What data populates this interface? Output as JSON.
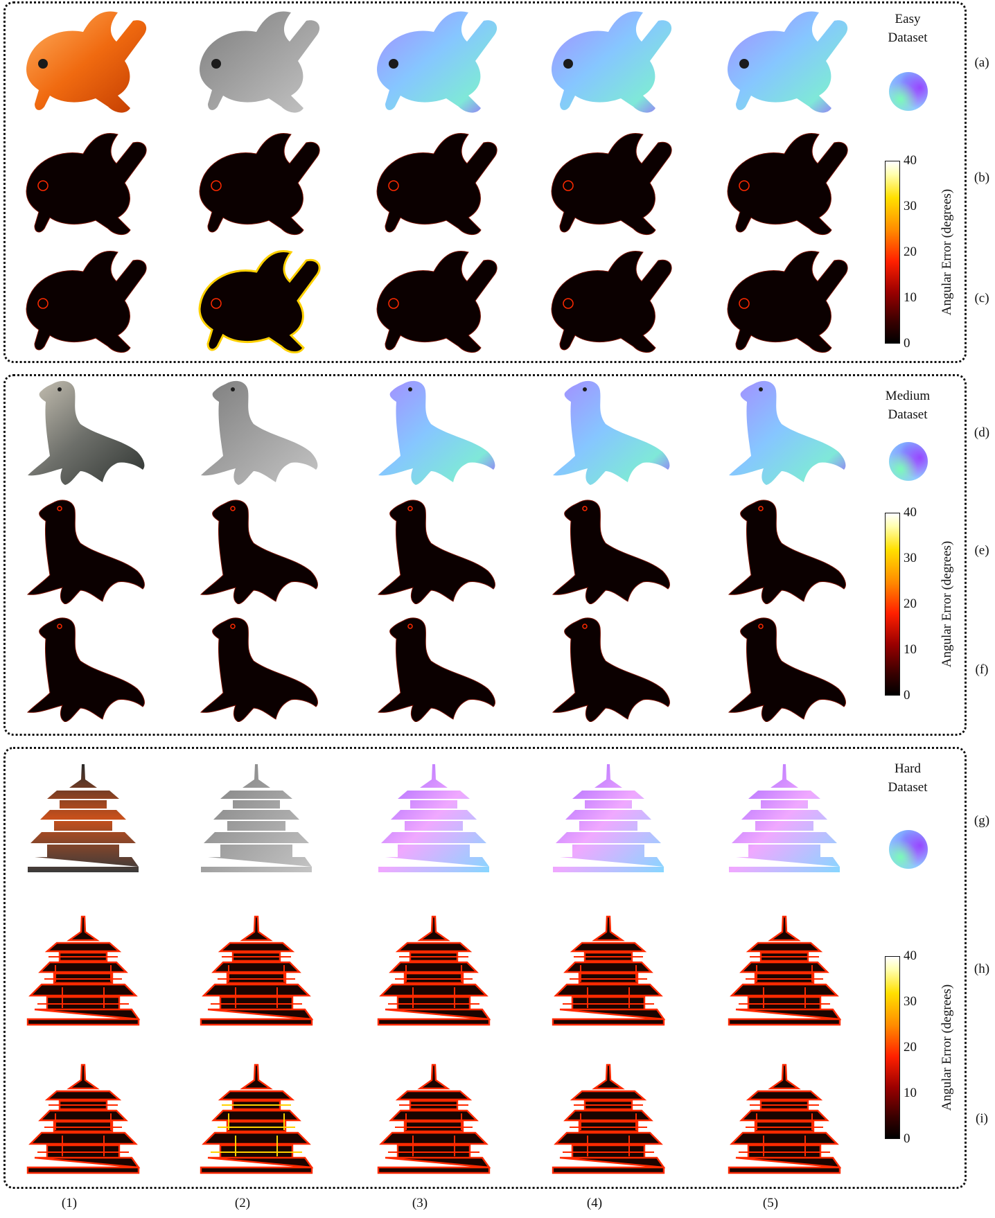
{
  "datasets": [
    {
      "title_line1": "Easy",
      "title_line2": "Dataset",
      "object": "goldfish"
    },
    {
      "title_line1": "Medium",
      "title_line2": "Dataset",
      "object": "seal"
    },
    {
      "title_line1": "Hard",
      "title_line2": "Dataset",
      "object": "pagoda"
    }
  ],
  "row_labels": [
    "(a)",
    "(b)",
    "(c)",
    "(d)",
    "(e)",
    "(f)",
    "(g)",
    "(h)",
    "(i)"
  ],
  "column_labels": [
    "(1)",
    "(2)",
    "(3)",
    "(4)",
    "(5)"
  ],
  "colorbar": {
    "label": "Angular Error (degrees)",
    "ticks": [
      "40",
      "30",
      "20",
      "10",
      "0"
    ],
    "range": [
      0,
      40
    ],
    "colormap": "hot"
  },
  "image_kinds": {
    "row1": [
      "rendered-rgb",
      "depth-gray",
      "normal-map",
      "normal-map",
      "normal-map"
    ],
    "row2": [
      "error-map",
      "error-map",
      "error-map",
      "error-map",
      "error-map"
    ],
    "row3": [
      "error-map",
      "error-map",
      "error-map",
      "error-map",
      "error-map"
    ]
  },
  "colors": {
    "normal_light": "#8fd0ff",
    "normal_purple": "#9b6bff",
    "depth_gray": "#9a9a9a",
    "error_bg": "#0b0000",
    "error_edge": "#ff2a00",
    "error_hot": "#ffd000"
  }
}
